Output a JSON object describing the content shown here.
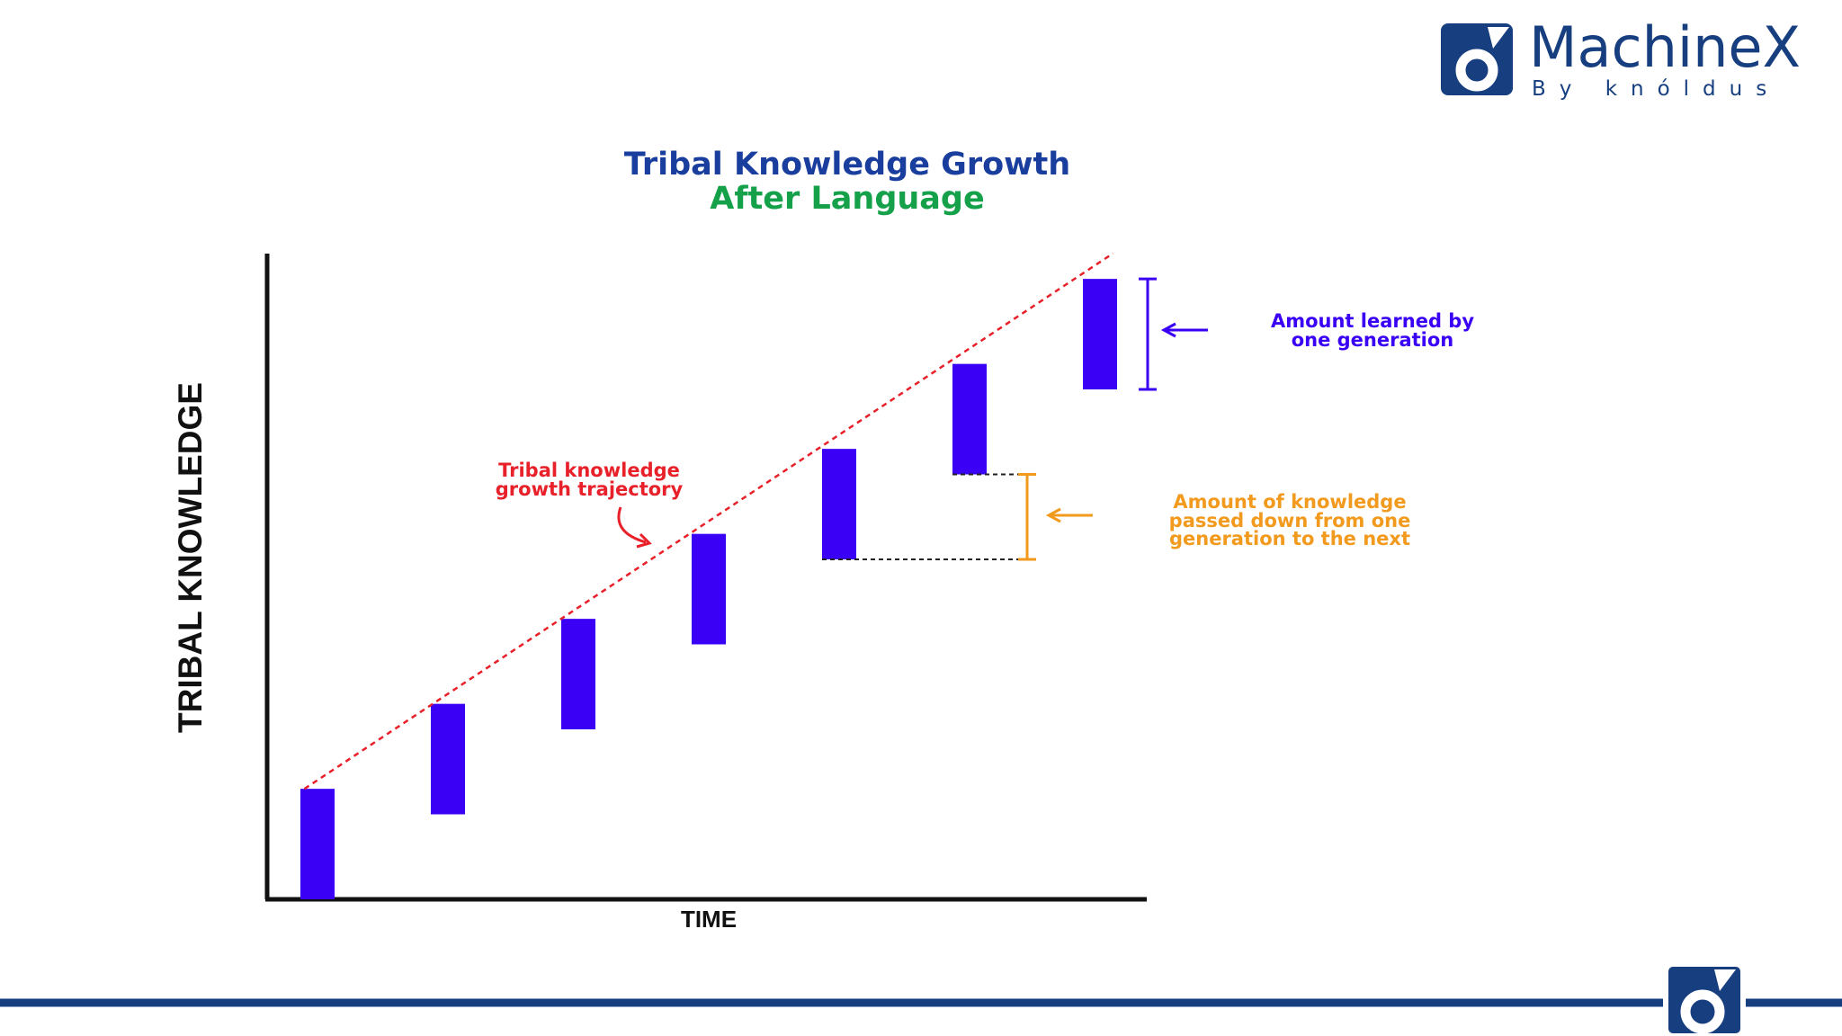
{
  "brand": {
    "name": "MachineX",
    "tagline": "By knóldus",
    "colors": {
      "navy": "#173f80",
      "accent": "#1f5fa8"
    }
  },
  "chart_data": {
    "type": "bar",
    "title": "Tribal Knowledge Growth",
    "subtitle": "After Language",
    "xlabel": "TIME",
    "ylabel": "TRIBAL KNOWLEDGE",
    "bars": [
      {
        "low": 0,
        "high": 1.3
      },
      {
        "low": 1.0,
        "high": 2.3
      },
      {
        "low": 2.0,
        "high": 3.3
      },
      {
        "low": 3.0,
        "high": 4.3
      },
      {
        "low": 4.0,
        "high": 5.3
      },
      {
        "low": 5.0,
        "high": 6.3
      },
      {
        "low": 6.0,
        "high": 7.3
      }
    ],
    "ylim": [
      0,
      7.5
    ],
    "trajectory": [
      [
        -0.1,
        1.3
      ],
      [
        6.1,
        7.6
      ]
    ],
    "annotations": {
      "trajectory": [
        "Tribal knowledge",
        "growth trajectory"
      ],
      "learned": [
        "Amount learned by",
        "one generation"
      ],
      "passed": [
        "Amount of knowledge",
        "passed down from one",
        "generation to the next"
      ]
    },
    "colors": {
      "bar": "#3a00f5",
      "trajectory": "#e8202a",
      "learned": "#3a00f5",
      "passed": "#f29a1d",
      "title": "#1a3e9e",
      "subtitle": "#15a04a",
      "axis": "#111111"
    },
    "legend": "none",
    "grid": false
  }
}
